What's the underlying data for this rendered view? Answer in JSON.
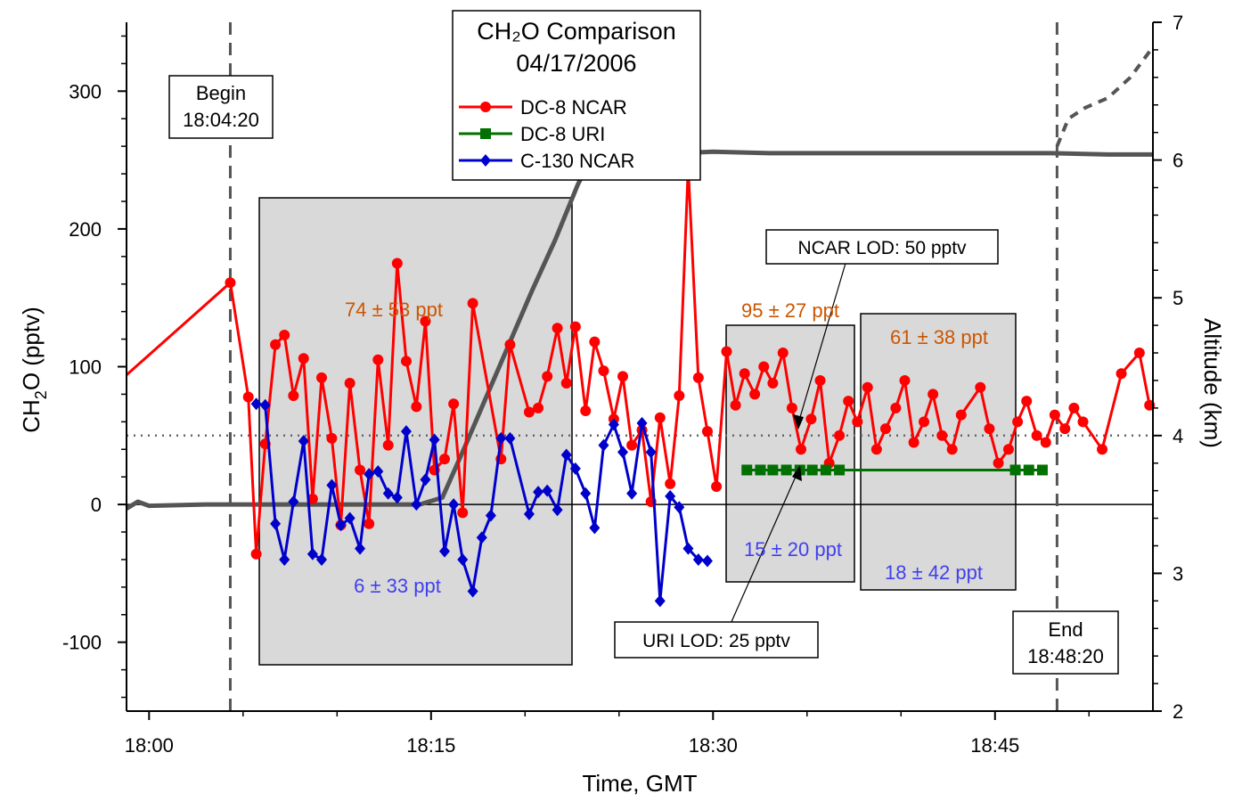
{
  "chart_data": {
    "type": "line",
    "title": "CH₂O Comparison",
    "subtitle": "04/17/2006",
    "xlabel": "Time, GMT",
    "ylabel": {
      "main": "CH",
      "sub": "2",
      "tail": "O  (pptv)"
    },
    "y2label": "Altitude  (km)",
    "xlim": [
      17.98,
      18.89
    ],
    "ylim": [
      -150,
      350
    ],
    "y2lim": [
      2,
      7
    ],
    "x_ticks": [
      {
        "value": 18.0,
        "label": "18:00"
      },
      {
        "value": 18.25,
        "label": "18:15"
      },
      {
        "value": 18.5,
        "label": "18:30"
      },
      {
        "value": 18.75,
        "label": "18:45"
      }
    ],
    "y_ticks": [
      {
        "value": -100,
        "label": "-100"
      },
      {
        "value": 0,
        "label": "0"
      },
      {
        "value": 100,
        "label": "100"
      },
      {
        "value": 200,
        "label": "200"
      },
      {
        "value": 300,
        "label": "300"
      }
    ],
    "y2_ticks": [
      {
        "value": 2,
        "label": "2"
      },
      {
        "value": 3,
        "label": "3"
      },
      {
        "value": 4,
        "label": "4"
      },
      {
        "value": 5,
        "label": "5"
      },
      {
        "value": 6,
        "label": "6"
      },
      {
        "value": 7,
        "label": "7"
      }
    ],
    "grid": false,
    "legend_position": "top-center",
    "series": [
      {
        "name": "DC-8 NCAR",
        "color": "#ff0000",
        "marker": "circle",
        "x": [
          17.98,
          18.072,
          18.088,
          18.095,
          18.103,
          18.112,
          18.12,
          18.128,
          18.137,
          18.145,
          18.153,
          18.162,
          18.17,
          18.178,
          18.187,
          18.195,
          18.203,
          18.212,
          18.22,
          18.228,
          18.237,
          18.245,
          18.253,
          18.262,
          18.27,
          18.278,
          18.287,
          18.312,
          18.32,
          18.337,
          18.345,
          18.353,
          18.362,
          18.37,
          18.378,
          18.387,
          18.395,
          18.403,
          18.412,
          18.42,
          18.428,
          18.437,
          18.445,
          18.453,
          18.462,
          18.47,
          18.478,
          18.487,
          18.495,
          18.503,
          18.512,
          18.52,
          18.528,
          18.537,
          18.545,
          18.553,
          18.562,
          18.57,
          18.578,
          18.587,
          18.595,
          18.603,
          18.612,
          18.62,
          18.628,
          18.637,
          18.645,
          18.653,
          18.662,
          18.67,
          18.678,
          18.687,
          18.695,
          18.703,
          18.712,
          18.72,
          18.737,
          18.745,
          18.753,
          18.762,
          18.77,
          18.778,
          18.787,
          18.795,
          18.803,
          18.812,
          18.82,
          18.828,
          18.845,
          18.862,
          18.878,
          18.887
        ],
        "y": [
          94,
          161,
          78,
          -36,
          44,
          116,
          123,
          79,
          106,
          4,
          92,
          48,
          -15,
          88,
          25,
          -14,
          105,
          43,
          175,
          104,
          71,
          133,
          25,
          33,
          73,
          -6,
          146,
          33,
          116,
          67,
          70,
          93,
          128,
          88,
          129,
          68,
          118,
          97,
          62,
          93,
          43,
          54,
          2,
          63,
          15,
          79,
          245,
          92,
          53,
          13,
          111,
          72,
          95,
          80,
          100,
          88,
          110,
          70,
          40,
          62,
          90,
          30,
          50,
          75,
          60,
          85,
          40,
          55,
          70,
          90,
          45,
          60,
          80,
          50,
          40,
          65,
          85,
          55,
          30,
          40,
          60,
          75,
          50,
          45,
          65,
          55,
          70,
          60,
          40,
          95,
          110,
          72
        ]
      },
      {
        "name": "DC-8 URI",
        "color": "#007000",
        "marker": "square",
        "x": [
          18.53,
          18.542,
          18.553,
          18.565,
          18.577,
          18.588,
          18.6,
          18.612,
          18.768,
          18.78,
          18.792
        ],
        "y": [
          25,
          25,
          25,
          25,
          25,
          25,
          25,
          25,
          25,
          25,
          25
        ]
      },
      {
        "name": "C-130 NCAR",
        "color": "#0000cc",
        "marker": "diamond",
        "x": [
          18.095,
          18.103,
          18.112,
          18.12,
          18.128,
          18.137,
          18.145,
          18.153,
          18.162,
          18.17,
          18.178,
          18.187,
          18.195,
          18.203,
          18.212,
          18.22,
          18.228,
          18.237,
          18.245,
          18.253,
          18.262,
          18.27,
          18.278,
          18.287,
          18.295,
          18.303,
          18.312,
          18.32,
          18.337,
          18.345,
          18.353,
          18.362,
          18.37,
          18.378,
          18.387,
          18.395,
          18.403,
          18.412,
          18.42,
          18.428,
          18.437,
          18.445,
          18.453,
          18.462,
          18.47,
          18.478,
          18.487,
          18.495
        ],
        "y": [
          73,
          72,
          -14,
          -40,
          2,
          46,
          -36,
          -40,
          14,
          -15,
          -10,
          -32,
          22,
          24,
          8,
          5,
          53,
          0,
          18,
          47,
          -34,
          0,
          -40,
          -63,
          -24,
          -8,
          48,
          48,
          -7,
          9,
          10,
          -4,
          36,
          26,
          8,
          -17,
          43,
          58,
          38,
          8,
          59,
          38,
          -70,
          6,
          -2,
          -32,
          -40,
          -41
        ]
      }
    ],
    "annotations": {
      "begin": {
        "title": "Begin",
        "time": "18:04:20",
        "x": 18.072
      },
      "end": {
        "title": "End",
        "time": "18:48:20",
        "x": 18.805
      },
      "lod_lines": [
        {
          "label": "NCAR LOD: 50 pptv",
          "value": 50
        },
        {
          "label": "URI LOD: 25 pptv",
          "value": 25
        }
      ],
      "stats": [
        {
          "text": "74 ± 53 ppt",
          "color": "#cc5500"
        },
        {
          "text": "6 ± 33 ppt",
          "color": "#4040ee"
        },
        {
          "text": "95 ± 27 ppt",
          "color": "#cc5500"
        },
        {
          "text": "15 ± 20 ppt",
          "color": "#4040ee"
        },
        {
          "text": "61 ± 38 ppt",
          "color": "#cc5500"
        },
        {
          "text": "18 ± 42 ppt",
          "color": "#4040ee"
        }
      ]
    },
    "altitude_series": {
      "color": "#555555",
      "x": [
        17.98,
        17.99,
        18.0,
        18.05,
        18.1,
        18.15,
        18.2,
        18.24,
        18.26,
        18.28,
        18.3,
        18.32,
        18.34,
        18.36,
        18.38,
        18.4,
        18.42,
        18.44,
        18.47,
        18.5,
        18.55,
        18.6,
        18.65,
        18.7,
        18.75,
        18.8,
        18.85,
        18.89
      ],
      "y": [
        3.47,
        3.52,
        3.49,
        3.5,
        3.5,
        3.5,
        3.5,
        3.5,
        3.55,
        3.92,
        4.3,
        4.68,
        5.06,
        5.42,
        5.82,
        6.14,
        6.1,
        6.06,
        6.05,
        6.06,
        6.05,
        6.05,
        6.05,
        6.05,
        6.05,
        6.05,
        6.04,
        6.04
      ]
    },
    "altitude_dashed": {
      "x": [
        18.805,
        18.815,
        18.83,
        18.85,
        18.87,
        18.89
      ],
      "y": [
        6.1,
        6.3,
        6.38,
        6.45,
        6.6,
        6.82
      ]
    }
  }
}
